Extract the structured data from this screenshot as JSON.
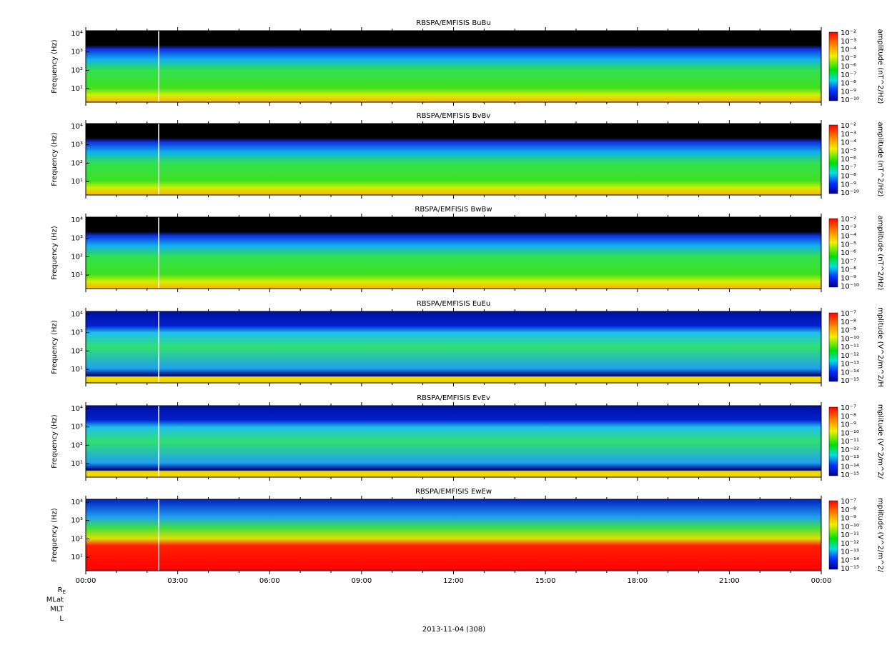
{
  "panels": [
    {
      "title": "RBSPA/EMFISIS  BuBu",
      "ylabel": "Frequency (Hz)",
      "yticks": [
        "10⁴",
        "10³",
        "10²",
        "10¹"
      ],
      "colorbar_label": "amplitude (nT^2/Hz)",
      "colorbar_ticks": [
        "10⁻²",
        "10⁻³",
        "10⁻⁴",
        "10⁻⁵",
        "10⁻⁶",
        "10⁻⁷",
        "10⁻⁸",
        "10⁻⁹",
        "10⁻¹⁰"
      ]
    },
    {
      "title": "RBSPA/EMFISIS  BvBv",
      "ylabel": "Frequency (Hz)",
      "yticks": [
        "10⁴",
        "10³",
        "10²",
        "10¹"
      ],
      "colorbar_label": "amplitude (nT^2/Hz)",
      "colorbar_ticks": [
        "10⁻²",
        "10⁻³",
        "10⁻⁴",
        "10⁻⁵",
        "10⁻⁶",
        "10⁻⁷",
        "10⁻⁸",
        "10⁻⁹",
        "10⁻¹⁰"
      ]
    },
    {
      "title": "RBSPA/EMFISIS  BwBw",
      "ylabel": "Frequency (Hz)",
      "yticks": [
        "10⁴",
        "10³",
        "10²",
        "10¹"
      ],
      "colorbar_label": "amplitude (nT^2/Hz)",
      "colorbar_ticks": [
        "10⁻²",
        "10⁻³",
        "10⁻⁴",
        "10⁻⁵",
        "10⁻⁶",
        "10⁻⁷",
        "10⁻⁸",
        "10⁻⁹",
        "10⁻¹⁰"
      ]
    },
    {
      "title": "RBSPA/EMFISIS  EuEu",
      "ylabel": "Frequency (Hz)",
      "yticks": [
        "10⁴",
        "10³",
        "10²",
        "10¹"
      ],
      "colorbar_label": "mplitude (V^2/m^2/H",
      "colorbar_ticks": [
        "10⁻⁷",
        "10⁻⁸",
        "10⁻⁹",
        "10⁻¹⁰",
        "10⁻¹¹",
        "10⁻¹²",
        "10⁻¹³",
        "10⁻¹⁴",
        "10⁻¹⁵"
      ]
    },
    {
      "title": "RBSPA/EMFISIS  EvEv",
      "ylabel": "Frequency (Hz)",
      "yticks": [
        "10⁴",
        "10³",
        "10²",
        "10¹"
      ],
      "colorbar_label": "mplitude (V^2/m^2/",
      "colorbar_ticks": [
        "10⁻⁷",
        "10⁻⁸",
        "10⁻⁹",
        "10⁻¹⁰",
        "10⁻¹¹",
        "10⁻¹²",
        "10⁻¹³",
        "10⁻¹⁴",
        "10⁻¹⁵"
      ]
    },
    {
      "title": "RBSPA/EMFISIS  EwEw",
      "ylabel": "Frequency (Hz)",
      "yticks": [
        "10⁴",
        "10³",
        "10²",
        "10¹"
      ],
      "colorbar_label": "mplitude (V^2/m^2/",
      "colorbar_ticks": [
        "10⁻⁷",
        "10⁻⁸",
        "10⁻⁹",
        "10⁻¹⁰",
        "10⁻¹¹",
        "10⁻¹²",
        "10⁻¹³",
        "10⁻¹⁴",
        "10⁻¹⁵"
      ]
    }
  ],
  "xticks": [
    "00:00",
    "03:00",
    "06:00",
    "09:00",
    "12:00",
    "15:00",
    "18:00",
    "21:00",
    "00:00"
  ],
  "ephemeris_labels": [
    "R<sub>E</sub>",
    "MLat",
    "MLT",
    "L"
  ],
  "date": "2013-11-04 (308)"
}
